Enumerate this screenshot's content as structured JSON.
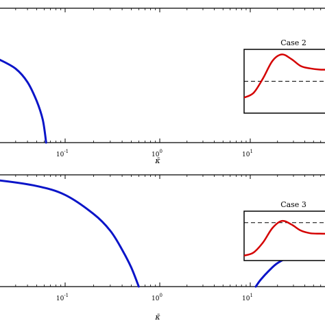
{
  "chart_data": [
    {
      "type": "line",
      "panel": "top",
      "xscale": "log",
      "xlabel": "κ̄",
      "xticks": [
        {
          "label": "10",
          "exp": "-1",
          "value": 0.1
        },
        {
          "label": "10",
          "exp": "0",
          "value": 1
        },
        {
          "label": "10",
          "exp": "1",
          "value": 10
        }
      ],
      "series": [
        {
          "color": "#0a14c8",
          "x": [
            0.02,
            0.03,
            0.04,
            0.05,
            0.058,
            0.063
          ],
          "y": [
            0.62,
            0.55,
            0.45,
            0.31,
            0.17,
            0.0
          ]
        }
      ],
      "inset": {
        "title": "Case 2",
        "color": "#d40000",
        "dashed_level": 0.5,
        "x": [
          0.0,
          0.1,
          0.2,
          0.3,
          0.4,
          0.5,
          0.6,
          0.7,
          0.8,
          0.9,
          1.0
        ],
        "y": [
          0.22,
          0.3,
          0.55,
          0.85,
          0.96,
          0.88,
          0.76,
          0.72,
          0.7,
          0.7,
          0.7
        ]
      }
    },
    {
      "type": "line",
      "panel": "bottom",
      "xscale": "log",
      "xlabel": "κ̄",
      "xticks": [
        {
          "label": "10",
          "exp": "-1",
          "value": 0.1
        },
        {
          "label": "10",
          "exp": "0",
          "value": 1
        },
        {
          "label": "10",
          "exp": "1",
          "value": 10
        }
      ],
      "series": [
        {
          "color": "#0a14c8",
          "x": [
            0.009,
            0.02,
            0.05,
            0.1,
            0.2,
            0.3,
            0.4,
            0.5,
            0.6
          ],
          "y": [
            0.97,
            0.95,
            0.9,
            0.82,
            0.65,
            0.5,
            0.33,
            0.17,
            0.0
          ]
        },
        {
          "color": "#0a14c8",
          "x": [
            11.5,
            13,
            16,
            20,
            28,
            40
          ],
          "y": [
            0.0,
            0.06,
            0.14,
            0.21,
            0.27,
            0.3
          ]
        }
      ],
      "inset": {
        "title": "Case 3",
        "color": "#d40000",
        "dashed_level": 0.8,
        "x": [
          0.0,
          0.1,
          0.2,
          0.3,
          0.4,
          0.5,
          0.6,
          0.7,
          0.8,
          0.9,
          1.0
        ],
        "y": [
          0.05,
          0.12,
          0.35,
          0.68,
          0.84,
          0.76,
          0.62,
          0.56,
          0.55,
          0.55,
          0.55
        ]
      }
    }
  ]
}
